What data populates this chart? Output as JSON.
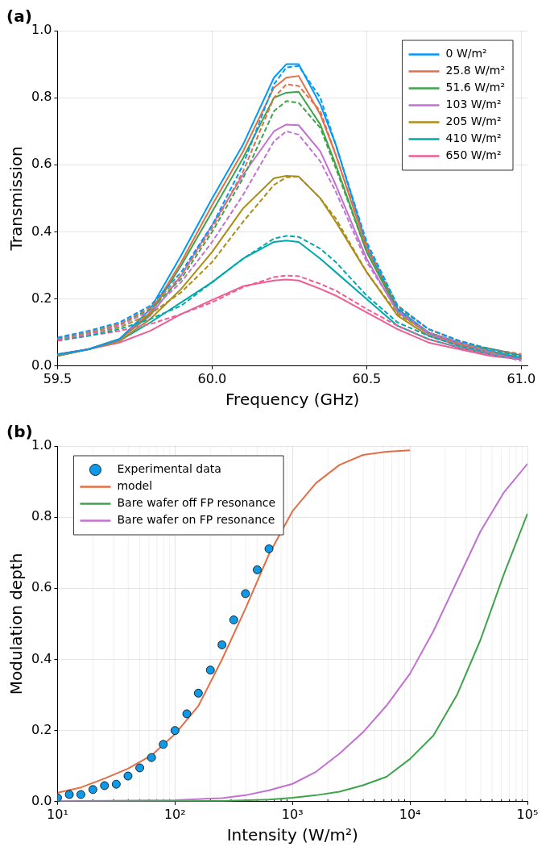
{
  "chart_data": [
    {
      "type": "line",
      "title": "(a)",
      "xlabel": "Frequency (GHz)",
      "ylabel": "Transmission",
      "x": [
        59.5,
        59.6,
        59.7,
        59.8,
        59.9,
        60.0,
        60.1,
        60.2,
        60.24,
        60.28,
        60.35,
        60.4,
        60.5,
        60.6,
        60.7,
        60.8,
        60.9,
        61.0
      ],
      "series": [
        {
          "name": "0 W/m²",
          "color": "#009af9",
          "values": [
            0.035,
            0.05,
            0.08,
            0.17,
            0.33,
            0.5,
            0.66,
            0.86,
            0.9,
            0.9,
            0.78,
            0.66,
            0.36,
            0.17,
            0.1,
            0.07,
            0.045,
            0.025
          ]
        },
        {
          "name": "25.8 W/m²",
          "color": "#e26f46",
          "values": [
            0.035,
            0.05,
            0.08,
            0.16,
            0.31,
            0.48,
            0.64,
            0.83,
            0.86,
            0.865,
            0.75,
            0.63,
            0.35,
            0.17,
            0.1,
            0.065,
            0.04,
            0.025
          ]
        },
        {
          "name": "51.6 W/m²",
          "color": "#3ea44b",
          "values": [
            0.033,
            0.05,
            0.08,
            0.155,
            0.3,
            0.46,
            0.62,
            0.8,
            0.815,
            0.818,
            0.72,
            0.6,
            0.34,
            0.165,
            0.1,
            0.065,
            0.052,
            0.032
          ]
        },
        {
          "name": "103 W/m²",
          "color": "#c271d2",
          "values": [
            0.033,
            0.05,
            0.08,
            0.15,
            0.27,
            0.42,
            0.57,
            0.7,
            0.72,
            0.718,
            0.64,
            0.54,
            0.32,
            0.16,
            0.095,
            0.06,
            0.04,
            0.022
          ]
        },
        {
          "name": "205 W/m²",
          "color": "#ac8d18",
          "values": [
            0.03,
            0.05,
            0.075,
            0.14,
            0.23,
            0.34,
            0.47,
            0.56,
            0.567,
            0.565,
            0.5,
            0.43,
            0.28,
            0.15,
            0.09,
            0.06,
            0.04,
            0.022
          ]
        },
        {
          "name": "410 W/m²",
          "color": "#00a9ad",
          "values": [
            0.03,
            0.05,
            0.075,
            0.13,
            0.19,
            0.25,
            0.32,
            0.37,
            0.374,
            0.37,
            0.32,
            0.28,
            0.2,
            0.12,
            0.08,
            0.055,
            0.035,
            0.02
          ]
        },
        {
          "name": "650 W/m²",
          "color": "#ed5e93",
          "values": [
            0.035,
            0.05,
            0.07,
            0.105,
            0.155,
            0.197,
            0.238,
            0.255,
            0.258,
            0.255,
            0.23,
            0.21,
            0.16,
            0.11,
            0.07,
            0.05,
            0.03,
            0.02
          ]
        },
        {
          "color": "#009af9",
          "line_style": "dashed",
          "values": [
            0.085,
            0.105,
            0.13,
            0.18,
            0.28,
            0.42,
            0.6,
            0.84,
            0.89,
            0.895,
            0.8,
            0.66,
            0.37,
            0.18,
            0.11,
            0.075,
            0.05,
            0.03
          ]
        },
        {
          "color": "#e26f46",
          "line_style": "dashed",
          "values": [
            0.083,
            0.1,
            0.125,
            0.175,
            0.27,
            0.41,
            0.58,
            0.8,
            0.84,
            0.835,
            0.76,
            0.63,
            0.36,
            0.18,
            0.11,
            0.075,
            0.05,
            0.036
          ]
        },
        {
          "color": "#3ea44b",
          "line_style": "dashed",
          "values": [
            0.082,
            0.1,
            0.125,
            0.17,
            0.26,
            0.4,
            0.56,
            0.76,
            0.79,
            0.785,
            0.71,
            0.59,
            0.34,
            0.175,
            0.11,
            0.075,
            0.05,
            0.03
          ]
        },
        {
          "color": "#c271d2",
          "line_style": "dashed",
          "values": [
            0.08,
            0.095,
            0.12,
            0.165,
            0.25,
            0.37,
            0.51,
            0.67,
            0.7,
            0.69,
            0.61,
            0.52,
            0.31,
            0.165,
            0.1,
            0.07,
            0.04,
            0.015
          ]
        },
        {
          "color": "#ac8d18",
          "line_style": "dashed",
          "values": [
            0.08,
            0.095,
            0.115,
            0.155,
            0.22,
            0.31,
            0.43,
            0.54,
            0.563,
            0.565,
            0.5,
            0.44,
            0.28,
            0.155,
            0.1,
            0.07,
            0.045,
            0.028
          ]
        },
        {
          "color": "#00a9ad",
          "line_style": "dashed",
          "values": [
            0.078,
            0.09,
            0.11,
            0.14,
            0.18,
            0.25,
            0.32,
            0.38,
            0.388,
            0.385,
            0.35,
            0.31,
            0.21,
            0.13,
            0.09,
            0.06,
            0.04,
            0.025
          ]
        },
        {
          "color": "#ed5e93",
          "line_style": "dashed",
          "values": [
            0.075,
            0.09,
            0.105,
            0.125,
            0.155,
            0.19,
            0.235,
            0.265,
            0.27,
            0.268,
            0.245,
            0.225,
            0.17,
            0.12,
            0.08,
            0.055,
            0.035,
            0.022
          ]
        }
      ],
      "xlim": [
        59.5,
        61.02
      ],
      "xticks": [
        {
          "value": 59.5,
          "label": "59.5"
        },
        {
          "value": 60,
          "label": "60.0"
        },
        {
          "value": 60.5,
          "label": "60.5"
        },
        {
          "value": 61,
          "label": "61.0"
        }
      ],
      "ylim": [
        0,
        1
      ],
      "yticks": [
        {
          "value": 0,
          "label": "0.0"
        },
        {
          "value": 0.2,
          "label": "0.2"
        },
        {
          "value": 0.4,
          "label": "0.4"
        },
        {
          "value": 0.6,
          "label": "0.6"
        },
        {
          "value": 0.8,
          "label": "0.8"
        },
        {
          "value": 1,
          "label": "1.0"
        }
      ],
      "grid": true,
      "legend": "top right",
      "line_style": "solid",
      "marker": "none"
    },
    {
      "type": "line",
      "title": "(b)",
      "xlabel": "Intensity (W/m²)",
      "ylabel": "Modulation depth",
      "log": "x",
      "series": [
        {
          "name": "Experimental data",
          "type": "scatter",
          "marker": "circle",
          "color": "#0f9ae8",
          "x": [
            10,
            12.6,
            15.8,
            20,
            25.1,
            31.6,
            39.8,
            50.1,
            63.1,
            79.4,
            100,
            126,
            158,
            200,
            251,
            316,
            398,
            501,
            631
          ],
          "values": [
            0.011,
            0.02,
            0.02,
            0.034,
            0.045,
            0.049,
            0.072,
            0.095,
            0.124,
            0.161,
            0.2,
            0.247,
            0.305,
            0.37,
            0.441,
            0.511,
            0.585,
            0.652,
            0.711
          ]
        },
        {
          "name": "model",
          "color": "#e26f46",
          "x": [
            10,
            15.85,
            25.12,
            39.81,
            63.1,
            100,
            158.5,
            251.2,
            398.1,
            631,
            1000,
            1585,
            2512,
            3981,
            6310,
            10000
          ],
          "values": [
            0.025,
            0.04,
            0.065,
            0.093,
            0.13,
            0.19,
            0.27,
            0.4,
            0.543,
            0.696,
            0.817,
            0.896,
            0.947,
            0.975,
            0.984,
            0.988
          ]
        },
        {
          "name": "Bare wafer off FP resonance",
          "color": "#3ea44b",
          "x": [
            10,
            100,
            251,
            631,
            1000,
            1585,
            2512,
            3981,
            6310,
            10000,
            15850,
            25120,
            39810,
            63100,
            100000
          ],
          "values": [
            0,
            0.001,
            0.002,
            0.006,
            0.011,
            0.018,
            0.028,
            0.046,
            0.07,
            0.12,
            0.186,
            0.3,
            0.455,
            0.64,
            0.81
          ]
        },
        {
          "name": "Bare wafer on FP resonance",
          "color": "#c271d2",
          "x": [
            10,
            100,
            251,
            398,
            631,
            1000,
            1585,
            2512,
            3981,
            6310,
            10000,
            15850,
            25120,
            39810,
            63100,
            100000
          ],
          "values": [
            0.001,
            0.004,
            0.01,
            0.018,
            0.032,
            0.05,
            0.084,
            0.135,
            0.195,
            0.27,
            0.36,
            0.48,
            0.62,
            0.76,
            0.87,
            0.95
          ]
        }
      ],
      "xlim": [
        10,
        100000
      ],
      "xticks": [
        {
          "value": 10,
          "label": "10¹"
        },
        {
          "value": 100,
          "label": "10²"
        },
        {
          "value": 1000,
          "label": "10³"
        },
        {
          "value": 10000,
          "label": "10⁴"
        },
        {
          "value": 100000,
          "label": "10⁵"
        }
      ],
      "ylim": [
        0,
        1
      ],
      "yticks": [
        {
          "value": 0,
          "label": "0.0"
        },
        {
          "value": 0.2,
          "label": "0.2"
        },
        {
          "value": 0.4,
          "label": "0.4"
        },
        {
          "value": 0.6,
          "label": "0.6"
        },
        {
          "value": 0.8,
          "label": "0.8"
        },
        {
          "value": 1,
          "label": "1.0"
        }
      ],
      "grid": true,
      "legend": "top left",
      "marker": "none",
      "line_style": "solid"
    }
  ]
}
